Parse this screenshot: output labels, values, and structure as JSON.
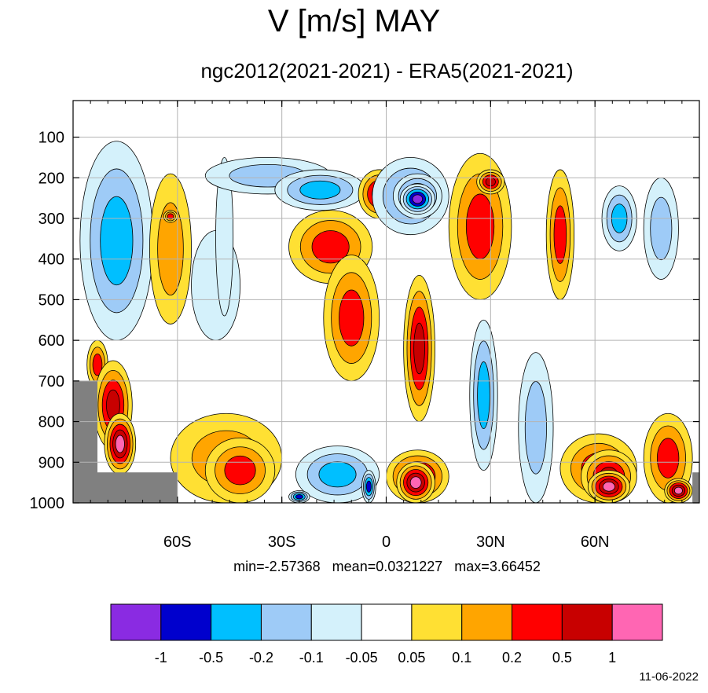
{
  "chart_data": {
    "type": "heatmap",
    "title": "V [m/s] MAY",
    "subtitle": "ngc2012(2021-2021) - ERA5(2021-2021)",
    "xlabel": "",
    "ylabel": "",
    "x_range": [
      -90,
      90
    ],
    "y_range": [
      1000,
      10
    ],
    "y_reversed": true,
    "x_ticks": [
      {
        "value": -60,
        "label": "60S"
      },
      {
        "value": -30,
        "label": "30S"
      },
      {
        "value": 0,
        "label": "0"
      },
      {
        "value": 30,
        "label": "30N"
      },
      {
        "value": 60,
        "label": "60N"
      }
    ],
    "y_ticks": [
      {
        "value": 100,
        "label": "100"
      },
      {
        "value": 200,
        "label": "200"
      },
      {
        "value": 300,
        "label": "300"
      },
      {
        "value": 400,
        "label": "400"
      },
      {
        "value": 500,
        "label": "500"
      },
      {
        "value": 600,
        "label": "600"
      },
      {
        "value": 700,
        "label": "700"
      },
      {
        "value": 800,
        "label": "800"
      },
      {
        "value": 900,
        "label": "900"
      },
      {
        "value": 1000,
        "label": "1000"
      }
    ],
    "grid": true,
    "stats": {
      "min": "-2.57368",
      "mean": "0.0321227",
      "max": "3.66452"
    },
    "stats_text": "min=-2.57368   mean=0.0321227   max=3.66452",
    "colorbar": {
      "colors": [
        "#8a2be2",
        "#0000cd",
        "#00bfff",
        "#9ecbf7",
        "#d4f1fb",
        "#ffffff",
        "#ffe033",
        "#ffa500",
        "#ff0000",
        "#c80000",
        "#ff66b3"
      ],
      "labels": [
        "-1",
        "-0.5",
        "-0.2",
        "-0.1",
        "-0.05",
        "0.05",
        "0.1",
        "0.2",
        "0.5",
        "1"
      ]
    },
    "missing_color": "#808080",
    "features": [
      {
        "lon": [
          -88,
          -67
        ],
        "p": [
          110,
          600
        ],
        "v": -0.25
      },
      {
        "lon": [
          -86,
          -80
        ],
        "p": [
          600,
          720
        ],
        "v": 0.45
      },
      {
        "lon": [
          -84,
          -73
        ],
        "p": [
          650,
          870
        ],
        "v": 0.6
      },
      {
        "lon": [
          -81,
          -72
        ],
        "p": [
          780,
          930
        ],
        "v": 2.0
      },
      {
        "lon": [
          -68,
          -56
        ],
        "p": [
          190,
          560
        ],
        "v": 0.12
      },
      {
        "lon": [
          -64,
          -60
        ],
        "p": [
          280,
          310
        ],
        "v": 0.3
      },
      {
        "lon": [
          -56,
          -42
        ],
        "p": [
          330,
          600
        ],
        "v": -0.07
      },
      {
        "lon": [
          -49,
          -44
        ],
        "p": [
          150,
          540
        ],
        "v": -0.07
      },
      {
        "lon": [
          -62,
          -30
        ],
        "p": [
          780,
          1000
        ],
        "v": 0.15
      },
      {
        "lon": [
          -52,
          -32
        ],
        "p": [
          840,
          1000
        ],
        "v": 0.4
      },
      {
        "lon": [
          -52,
          -16
        ],
        "p": [
          150,
          240
        ],
        "v": -0.15
      },
      {
        "lon": [
          -32,
          -6
        ],
        "p": [
          180,
          280
        ],
        "v": -0.3
      },
      {
        "lon": [
          -28,
          -4
        ],
        "p": [
          280,
          460
        ],
        "v": 0.3
      },
      {
        "lon": [
          -18,
          -2
        ],
        "p": [
          390,
          700
        ],
        "v": 0.4
      },
      {
        "lon": [
          -26,
          -2
        ],
        "p": [
          860,
          1000
        ],
        "v": -0.25
      },
      {
        "lon": [
          -28,
          -22
        ],
        "p": [
          970,
          1000
        ],
        "v": -0.6
      },
      {
        "lon": [
          -7,
          -3
        ],
        "p": [
          920,
          1000
        ],
        "v": -0.7
      },
      {
        "lon": [
          -8,
          4
        ],
        "p": [
          180,
          300
        ],
        "v": 0.5
      },
      {
        "lon": [
          -4,
          18
        ],
        "p": [
          150,
          340
        ],
        "v": -0.25
      },
      {
        "lon": [
          2,
          16
        ],
        "p": [
          190,
          300
        ],
        "v": -0.7
      },
      {
        "lon": [
          4,
          14
        ],
        "p": [
          215,
          290
        ],
        "v": -1.5
      },
      {
        "lon": [
          5,
          14
        ],
        "p": [
          440,
          800
        ],
        "v": 0.6
      },
      {
        "lon": [
          0,
          18
        ],
        "p": [
          870,
          1000
        ],
        "v": 0.7
      },
      {
        "lon": [
          3,
          14
        ],
        "p": [
          900,
          1000
        ],
        "v": 1.8
      },
      {
        "lon": [
          18,
          36
        ],
        "p": [
          140,
          500
        ],
        "v": 0.35
      },
      {
        "lon": [
          26,
          34
        ],
        "p": [
          180,
          240
        ],
        "v": 0.7
      },
      {
        "lon": [
          24,
          32
        ],
        "p": [
          550,
          920
        ],
        "v": -0.25
      },
      {
        "lon": [
          46,
          54
        ],
        "p": [
          180,
          500
        ],
        "v": 0.35
      },
      {
        "lon": [
          38,
          48
        ],
        "p": [
          630,
          1000
        ],
        "v": -0.15
      },
      {
        "lon": [
          50,
          72
        ],
        "p": [
          830,
          1000
        ],
        "v": 0.35
      },
      {
        "lon": [
          56,
          72
        ],
        "p": [
          870,
          1000
        ],
        "v": 0.7
      },
      {
        "lon": [
          58,
          70
        ],
        "p": [
          920,
          1000
        ],
        "v": 1.8
      },
      {
        "lon": [
          74,
          84
        ],
        "p": [
          200,
          450
        ],
        "v": -0.15
      },
      {
        "lon": [
          74,
          88
        ],
        "p": [
          780,
          1000
        ],
        "v": 0.4
      },
      {
        "lon": [
          80,
          88
        ],
        "p": [
          940,
          1000
        ],
        "v": 1.6
      },
      {
        "lon": [
          62,
          72
        ],
        "p": [
          220,
          380
        ],
        "v": -0.25
      }
    ]
  }
}
